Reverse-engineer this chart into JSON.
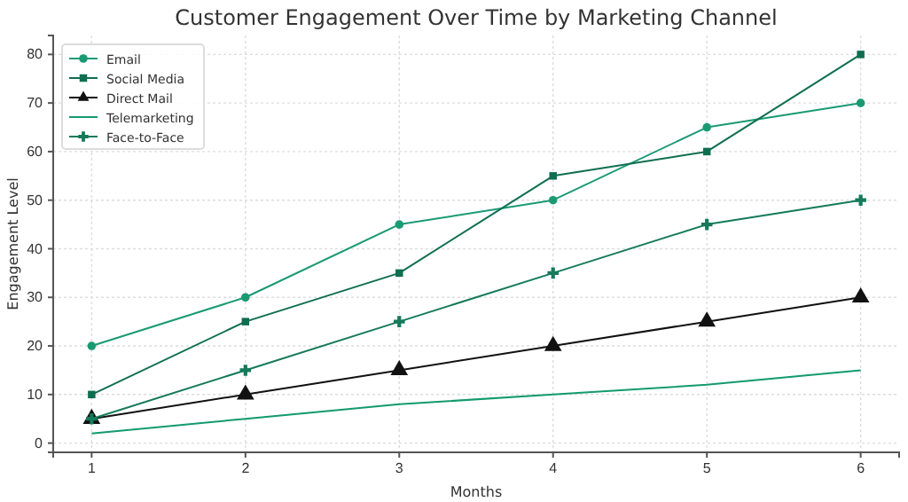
{
  "chart_data": {
    "type": "line",
    "title": "Customer Engagement Over Time by Marketing Channel",
    "xlabel": "Months",
    "ylabel": "Engagement Level",
    "x": [
      1,
      2,
      3,
      4,
      5,
      6
    ],
    "xlim": [
      0.75,
      6.25
    ],
    "xticks": [
      1,
      2,
      3,
      4,
      5,
      6
    ],
    "ylim": [
      -1.9,
      83.9
    ],
    "yticks": [
      0,
      10,
      20,
      30,
      40,
      50,
      60,
      70,
      80
    ],
    "grid": true,
    "legend": "top left",
    "line_style": "solid",
    "series": [
      {
        "name": "Email",
        "color": "#1a9a73",
        "marker": "circle",
        "values": [
          20,
          30,
          45,
          50,
          65,
          70
        ]
      },
      {
        "name": "Social Media",
        "color": "#0f6e50",
        "marker": "square",
        "values": [
          10,
          25,
          35,
          55,
          60,
          80
        ]
      },
      {
        "name": "Direct Mail",
        "color": "#111111",
        "marker": "triangle",
        "values": [
          5,
          10,
          15,
          20,
          25,
          30
        ]
      },
      {
        "name": "Telemarketing",
        "color": "#129a6e",
        "marker": "none",
        "values": [
          2,
          5,
          8,
          10,
          12,
          15
        ]
      },
      {
        "name": "Face-to-Face",
        "color": "#157a5a",
        "marker": "cross",
        "values": [
          5,
          15,
          25,
          35,
          45,
          50
        ]
      }
    ]
  }
}
